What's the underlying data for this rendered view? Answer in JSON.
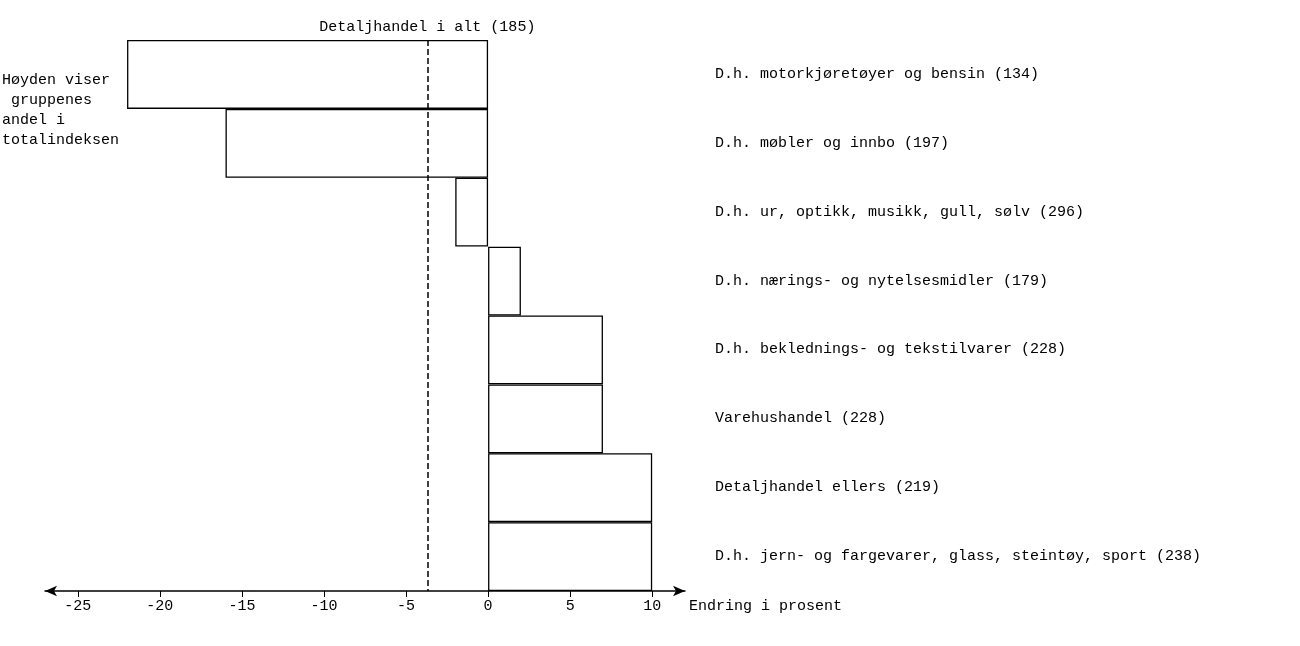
{
  "chart_data": {
    "type": "bar",
    "orientation": "horizontal",
    "xlabel": "Endring i prosent",
    "categories": [
      "D.h. motorkjøretøyer og bensin (134)",
      "D.h. møbler og innbo (197)",
      "D.h. ur, optikk, musikk, gull, sølv (296)",
      "D.h. nærings- og nytelsesmidler (179)",
      "D.h. beklednings- og tekstilvarer (228)",
      "Varehushandel (228)",
      "Detaljhandel ellers (219)",
      "D.h. jern- og fargevarer, glass, steintøy, sport (238)"
    ],
    "values": [
      -22,
      -16,
      -2,
      2,
      7,
      7,
      10,
      10
    ],
    "color": "#ffffff",
    "xlim": [
      -27,
      12
    ],
    "xticks": [
      -25,
      -20,
      -15,
      -10,
      -5,
      0,
      5,
      10
    ],
    "ref_lines": [
      {
        "axis": "x",
        "value": -3.7,
        "label": "Detaljhandel i alt (185)",
        "line_style": "dashed",
        "color": "#000000"
      }
    ],
    "annotations": [
      "Høyden viser gruppenes andel i totalindeksen"
    ],
    "grid": false
  }
}
